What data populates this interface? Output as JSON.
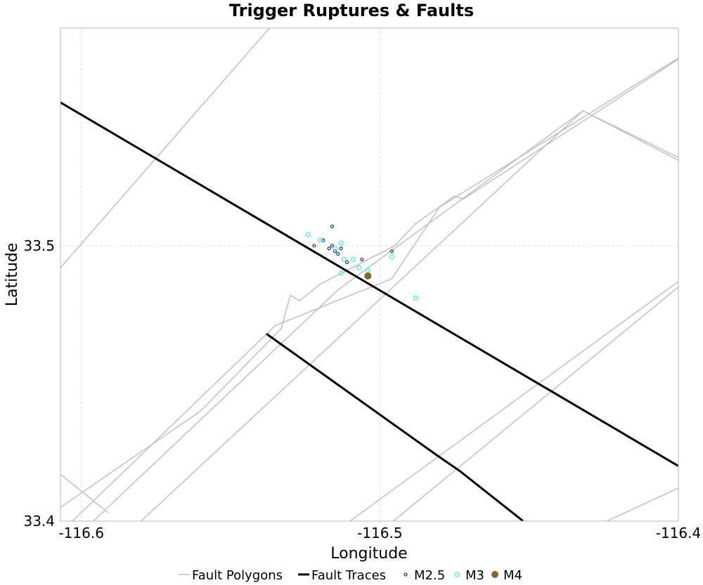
{
  "chart_data": {
    "type": "scatter",
    "title": "Trigger Ruptures & Faults",
    "xlabel": "Longitude",
    "ylabel": "Latitude",
    "xlim": [
      -116.607,
      -116.4
    ],
    "ylim": [
      33.4,
      33.579
    ],
    "x_ticks": [
      -116.6,
      -116.5,
      -116.4
    ],
    "x_tick_labels": [
      "-116.6",
      "-116.5",
      "-116.4"
    ],
    "y_ticks": [
      33.4,
      33.5
    ],
    "y_tick_labels": [
      "33.4",
      "33.5"
    ],
    "grid": true,
    "legend_position": "bottom",
    "series": [
      {
        "name": "Fault Polygons",
        "kind": "line",
        "color": "#c0c0c0",
        "lines": [
          [
            [
              -116.607,
              33.492
            ],
            [
              -116.537,
              33.579
            ]
          ],
          [
            [
              -116.607,
              33.405
            ],
            [
              -116.56,
              33.44
            ],
            [
              -116.533,
              33.47
            ],
            [
              -116.53,
              33.482
            ],
            [
              -116.527,
              33.48
            ],
            [
              -116.52,
              33.486
            ],
            [
              -116.495,
              33.5
            ],
            [
              -116.488,
              33.508
            ],
            [
              -116.475,
              33.518
            ],
            [
              -116.472,
              33.517
            ],
            [
              -116.384,
              33.579
            ]
          ],
          [
            [
              -116.603,
              33.4
            ],
            [
              -116.535,
              33.471
            ],
            [
              -116.496,
              33.488
            ],
            [
              -116.48,
              33.514
            ],
            [
              -116.384,
              33.579
            ]
          ],
          [
            [
              -116.607,
              33.417
            ],
            [
              -116.591,
              33.403
            ]
          ],
          [
            [
              -116.596,
              33.4
            ],
            [
              -116.514,
              33.484
            ],
            [
              -116.432,
              33.549
            ],
            [
              -116.4,
              33.531
            ]
          ],
          [
            [
              -116.51,
              33.4
            ],
            [
              -116.4,
              33.487
            ]
          ],
          [
            [
              -116.5,
              33.396
            ],
            [
              -116.4,
              33.485
            ]
          ],
          [
            [
              -116.58,
              33.4
            ],
            [
              -116.432,
              33.549
            ],
            [
              -116.4,
              33.532
            ]
          ],
          [
            [
              -116.38,
              33.579
            ],
            [
              -116.4,
              33.551
            ]
          ],
          [
            [
              -116.424,
              33.4
            ],
            [
              -116.4,
              33.412
            ]
          ]
        ]
      },
      {
        "name": "Fault Traces",
        "kind": "line",
        "color": "#000000",
        "lines": [
          [
            [
              -116.607,
              33.552
            ],
            [
              -116.4,
              33.42
            ]
          ],
          [
            [
              -116.538,
              33.468
            ],
            [
              -116.481,
              33.424
            ],
            [
              -116.473,
              33.418
            ],
            [
              -116.452,
              33.4
            ]
          ]
        ]
      },
      {
        "name": "M2.5",
        "kind": "scatter",
        "color": "#1a2f6b",
        "points": [
          [
            -116.516,
            33.507
          ],
          [
            -116.519,
            33.502
          ],
          [
            -116.516,
            33.5
          ],
          [
            -116.517,
            33.499
          ],
          [
            -116.515,
            33.498
          ],
          [
            -116.522,
            33.5
          ],
          [
            -116.513,
            33.499
          ],
          [
            -116.514,
            33.497
          ],
          [
            -116.511,
            33.494
          ],
          [
            -116.506,
            33.495
          ],
          [
            -116.496,
            33.498
          ]
        ]
      },
      {
        "name": "M3",
        "kind": "scatter",
        "color": "#44eeee",
        "points": [
          [
            -116.524,
            33.504
          ],
          [
            -116.52,
            33.502
          ],
          [
            -116.515,
            33.499
          ],
          [
            -116.513,
            33.501
          ],
          [
            -116.512,
            33.495
          ],
          [
            -116.509,
            33.495
          ],
          [
            -116.507,
            33.492
          ],
          [
            -116.504,
            33.491
          ],
          [
            -116.513,
            33.49
          ],
          [
            -116.496,
            33.496
          ],
          [
            -116.488,
            33.481
          ]
        ]
      },
      {
        "name": "M4",
        "kind": "scatter",
        "color": "#8b6428",
        "points": [
          [
            -116.504,
            33.489
          ]
        ]
      }
    ]
  }
}
